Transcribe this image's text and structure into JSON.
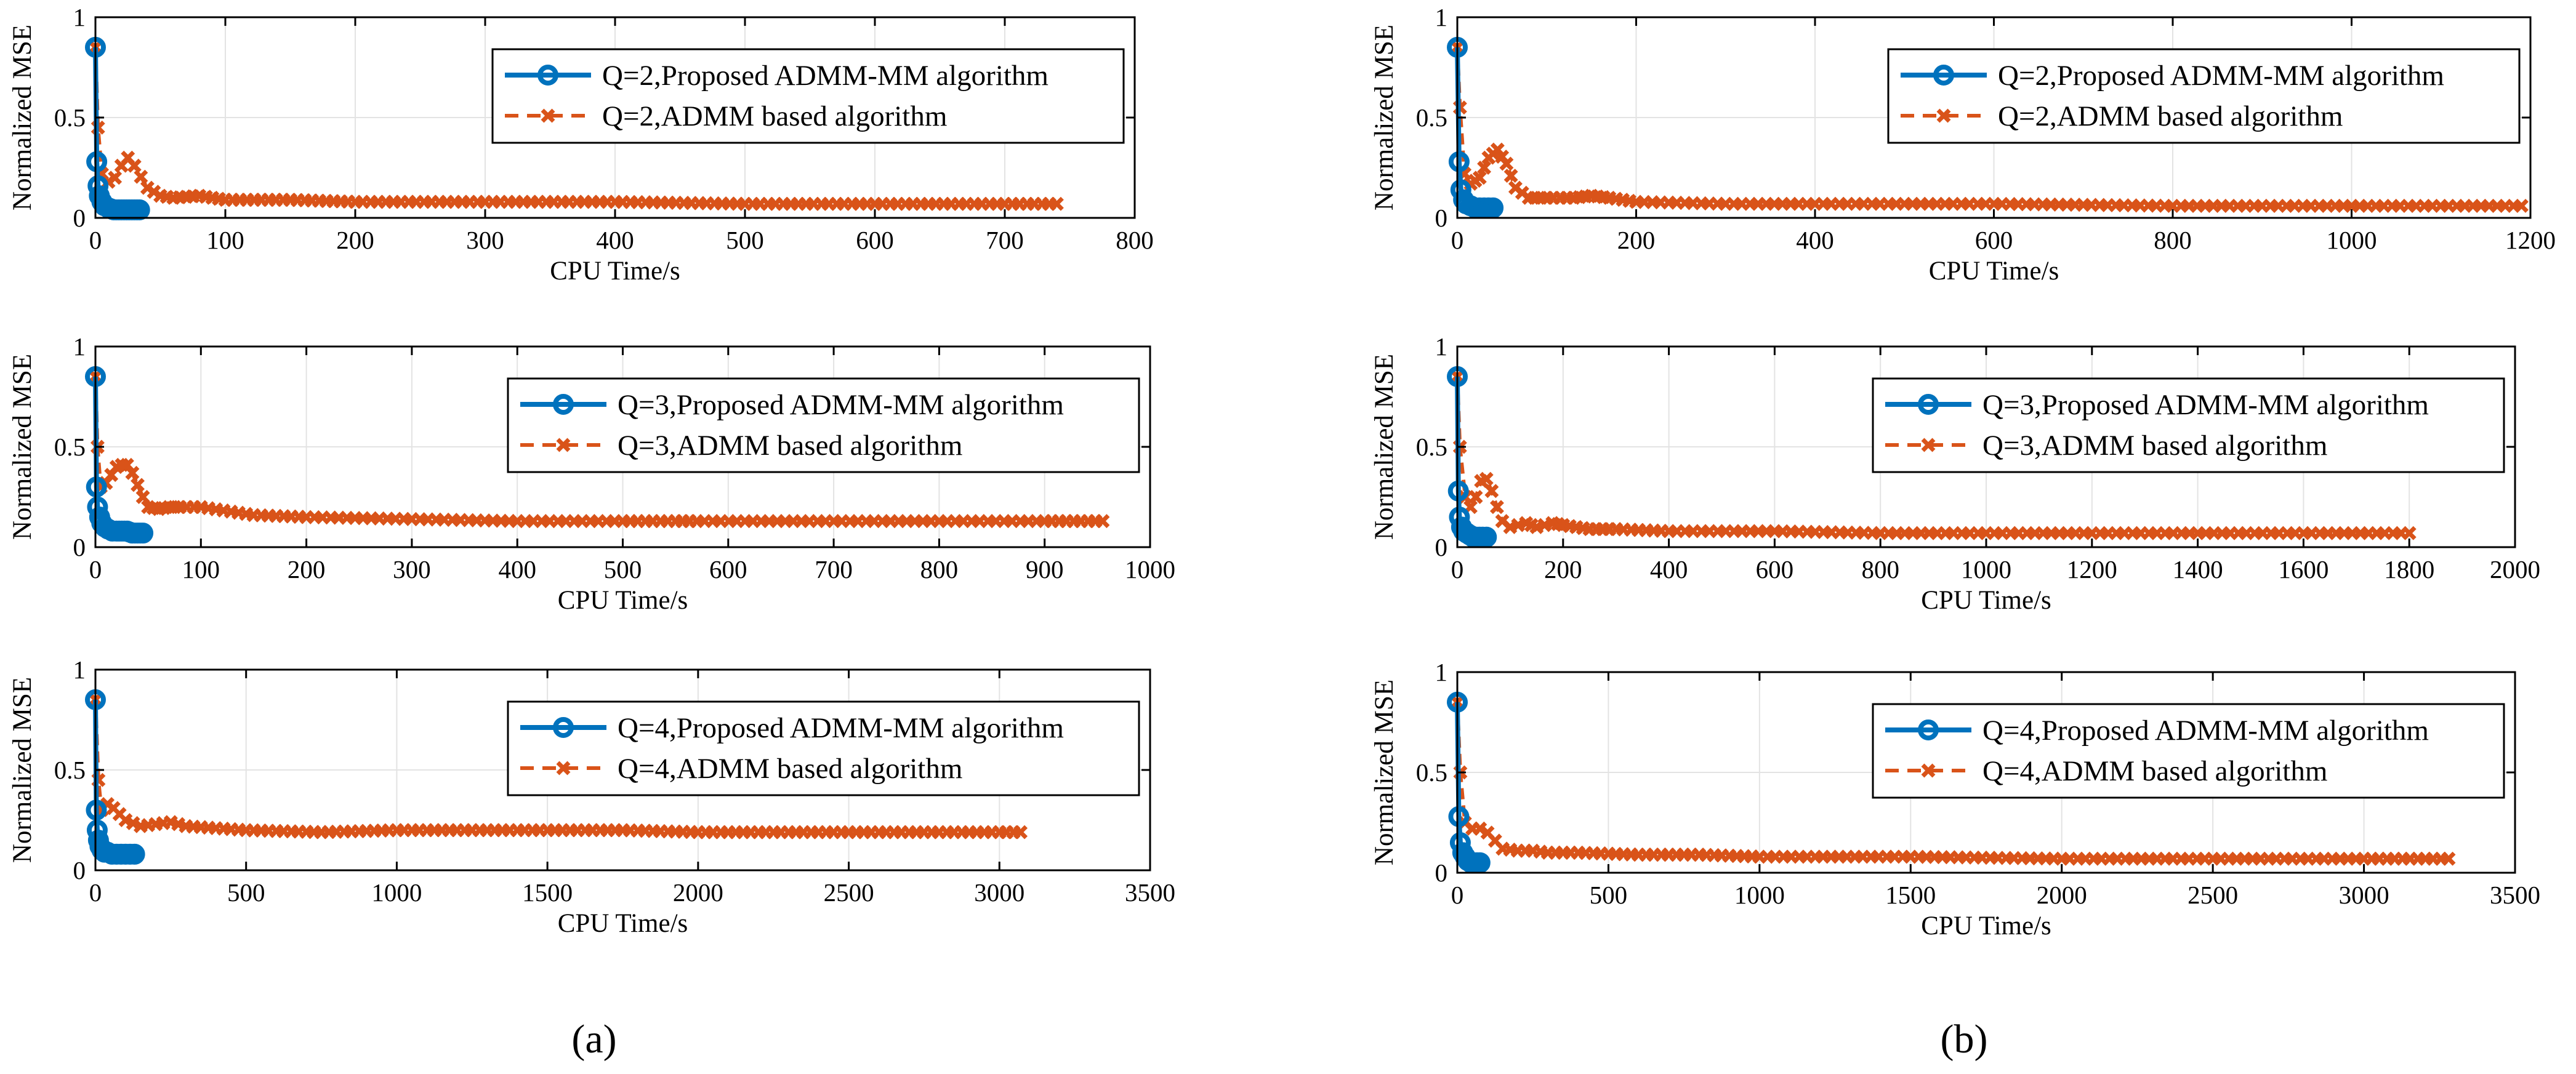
{
  "panel_labels": [
    "(a)",
    "(b)"
  ],
  "colors": {
    "proposed": "#0072BD",
    "admm": "#D95319",
    "grid": "#e3e3e3",
    "axis": "#000000"
  },
  "chart_data": [
    {
      "type": "line",
      "panel": "a",
      "xlabel": "CPU Time/s",
      "ylabel": "Normalized MSE",
      "xlim": [
        0,
        800
      ],
      "ylim": [
        0,
        1
      ],
      "xticks": [
        0,
        100,
        200,
        300,
        400,
        500,
        600,
        700,
        800
      ],
      "yticks": [
        0,
        0.5,
        1
      ],
      "grid": true,
      "legend": "top-right",
      "series": [
        {
          "name": "Q=2,Proposed ADMM-MM algorithm",
          "x": [
            0,
            1,
            2,
            3,
            5,
            7,
            10,
            14,
            18,
            22,
            26,
            30,
            34
          ],
          "y": [
            0.85,
            0.28,
            0.16,
            0.11,
            0.08,
            0.06,
            0.05,
            0.04,
            0.04,
            0.04,
            0.04,
            0.04,
            0.04
          ]
        },
        {
          "name": "Q=2,ADMM based algorithm",
          "x": [
            0,
            2,
            5,
            10,
            15,
            20,
            25,
            30,
            40,
            50,
            60,
            80,
            100,
            150,
            200,
            300,
            400,
            500,
            600,
            700,
            740
          ],
          "y": [
            0.85,
            0.45,
            0.22,
            0.18,
            0.2,
            0.26,
            0.3,
            0.26,
            0.15,
            0.11,
            0.1,
            0.11,
            0.09,
            0.09,
            0.08,
            0.08,
            0.08,
            0.07,
            0.07,
            0.07,
            0.07
          ]
        }
      ]
    },
    {
      "type": "line",
      "panel": "b",
      "xlabel": "CPU Time/s",
      "ylabel": "Normalized MSE",
      "xlim": [
        0,
        1200
      ],
      "ylim": [
        0,
        1
      ],
      "xticks": [
        0,
        200,
        400,
        600,
        800,
        1000,
        1200
      ],
      "yticks": [
        0,
        0.5,
        1
      ],
      "grid": true,
      "legend": "top-right",
      "series": [
        {
          "name": "Q=2,Proposed ADMM-MM algorithm",
          "x": [
            0,
            2,
            4,
            7,
            10,
            15,
            20,
            25,
            30,
            35,
            40
          ],
          "y": [
            0.85,
            0.28,
            0.14,
            0.09,
            0.07,
            0.06,
            0.05,
            0.05,
            0.05,
            0.05,
            0.05
          ]
        },
        {
          "name": "Q=2,ADMM based algorithm",
          "x": [
            0,
            3,
            8,
            15,
            25,
            35,
            45,
            55,
            65,
            80,
            100,
            130,
            150,
            170,
            200,
            300,
            400,
            600,
            800,
            1000,
            1190
          ],
          "y": [
            0.85,
            0.55,
            0.22,
            0.17,
            0.2,
            0.3,
            0.34,
            0.27,
            0.15,
            0.1,
            0.1,
            0.1,
            0.11,
            0.1,
            0.08,
            0.07,
            0.07,
            0.07,
            0.06,
            0.06,
            0.06
          ]
        }
      ]
    },
    {
      "type": "line",
      "panel": "a",
      "xlabel": "CPU Time/s",
      "ylabel": "Normalized MSE",
      "xlim": [
        0,
        1000
      ],
      "ylim": [
        0,
        1
      ],
      "xticks": [
        0,
        100,
        200,
        300,
        400,
        500,
        600,
        700,
        800,
        900,
        1000
      ],
      "yticks": [
        0,
        0.5,
        1
      ],
      "grid": true,
      "legend": "top-right",
      "series": [
        {
          "name": "Q=3,Proposed ADMM-MM algorithm",
          "x": [
            0,
            1,
            2,
            4,
            6,
            9,
            12,
            16,
            20,
            25,
            30,
            35,
            40,
            45
          ],
          "y": [
            0.85,
            0.3,
            0.2,
            0.15,
            0.12,
            0.1,
            0.09,
            0.08,
            0.08,
            0.08,
            0.08,
            0.07,
            0.07,
            0.07
          ]
        },
        {
          "name": "Q=3,ADMM based algorithm",
          "x": [
            0,
            2,
            5,
            10,
            15,
            20,
            25,
            30,
            35,
            40,
            45,
            50,
            60,
            70,
            80,
            100,
            150,
            200,
            300,
            400,
            500,
            550,
            570,
            700,
            800,
            900,
            955
          ],
          "y": [
            0.85,
            0.5,
            0.3,
            0.32,
            0.36,
            0.4,
            0.41,
            0.41,
            0.37,
            0.31,
            0.25,
            0.2,
            0.19,
            0.2,
            0.2,
            0.2,
            0.16,
            0.15,
            0.14,
            0.13,
            0.13,
            0.13,
            0.13,
            0.13,
            0.13,
            0.13,
            0.13
          ]
        }
      ]
    },
    {
      "type": "line",
      "panel": "b",
      "xlabel": "CPU Time/s",
      "ylabel": "Normalized MSE",
      "xlim": [
        0,
        2000
      ],
      "ylim": [
        0,
        1
      ],
      "xticks": [
        0,
        200,
        400,
        600,
        800,
        1000,
        1200,
        1400,
        1600,
        1800,
        2000
      ],
      "yticks": [
        0,
        0.5,
        1
      ],
      "grid": true,
      "legend": "top-right",
      "series": [
        {
          "name": "Q=3,Proposed ADMM-MM algorithm",
          "x": [
            0,
            2,
            4,
            8,
            12,
            18,
            24,
            30,
            36,
            42,
            48,
            55
          ],
          "y": [
            0.85,
            0.28,
            0.15,
            0.1,
            0.08,
            0.07,
            0.06,
            0.05,
            0.05,
            0.05,
            0.05,
            0.05
          ]
        },
        {
          "name": "Q=3,ADMM based algorithm",
          "x": [
            0,
            5,
            15,
            25,
            35,
            45,
            55,
            65,
            75,
            85,
            100,
            130,
            150,
            180,
            200,
            250,
            300,
            400,
            600,
            800,
            1000,
            1200,
            1400,
            1600,
            1800
          ],
          "y": [
            0.85,
            0.5,
            0.25,
            0.2,
            0.25,
            0.33,
            0.34,
            0.28,
            0.2,
            0.13,
            0.1,
            0.12,
            0.1,
            0.12,
            0.11,
            0.09,
            0.09,
            0.08,
            0.08,
            0.07,
            0.07,
            0.07,
            0.07,
            0.07,
            0.07
          ]
        }
      ]
    },
    {
      "type": "line",
      "panel": "a",
      "xlabel": "CPU Time/s",
      "ylabel": "Normalized MSE",
      "xlim": [
        0,
        3500
      ],
      "ylim": [
        0,
        1
      ],
      "xticks": [
        0,
        500,
        1000,
        1500,
        2000,
        2500,
        3000,
        3500
      ],
      "yticks": [
        0,
        0.5,
        1
      ],
      "grid": true,
      "legend": "top-right",
      "series": [
        {
          "name": "Q=4,Proposed ADMM-MM algorithm",
          "x": [
            0,
            3,
            6,
            10,
            15,
            22,
            30,
            40,
            55,
            70,
            85,
            100,
            115,
            130
          ],
          "y": [
            0.85,
            0.3,
            0.2,
            0.15,
            0.12,
            0.1,
            0.09,
            0.09,
            0.08,
            0.08,
            0.08,
            0.08,
            0.08,
            0.08
          ]
        },
        {
          "name": "Q=4,ADMM based algorithm",
          "x": [
            0,
            10,
            20,
            40,
            60,
            100,
            150,
            200,
            250,
            300,
            500,
            750,
            1000,
            1250,
            1500,
            1750,
            2000,
            2250,
            2500,
            2750,
            3000,
            3070
          ],
          "y": [
            0.85,
            0.45,
            0.3,
            0.33,
            0.31,
            0.25,
            0.22,
            0.23,
            0.24,
            0.22,
            0.2,
            0.19,
            0.2,
            0.2,
            0.2,
            0.2,
            0.19,
            0.19,
            0.19,
            0.19,
            0.19,
            0.19
          ]
        }
      ]
    },
    {
      "type": "line",
      "panel": "b",
      "xlabel": "CPU Time/s",
      "ylabel": "Normalized MSE",
      "xlim": [
        0,
        3500
      ],
      "ylim": [
        0,
        1
      ],
      "xticks": [
        0,
        500,
        1000,
        1500,
        2000,
        2500,
        3000,
        3500
      ],
      "yticks": [
        0,
        0.5,
        1
      ],
      "grid": true,
      "legend": "top-right",
      "series": [
        {
          "name": "Q=4,Proposed ADMM-MM algorithm",
          "x": [
            0,
            5,
            10,
            18,
            26,
            35,
            45,
            55,
            65,
            75
          ],
          "y": [
            0.85,
            0.28,
            0.15,
            0.1,
            0.08,
            0.06,
            0.05,
            0.05,
            0.05,
            0.05
          ]
        },
        {
          "name": "Q=4,ADMM based algorithm",
          "x": [
            0,
            10,
            25,
            50,
            75,
            100,
            125,
            150,
            200,
            250,
            300,
            400,
            600,
            800,
            1000,
            1500,
            2000,
            2500,
            3000,
            3280
          ],
          "y": [
            0.85,
            0.5,
            0.25,
            0.22,
            0.22,
            0.2,
            0.16,
            0.12,
            0.11,
            0.11,
            0.1,
            0.1,
            0.09,
            0.09,
            0.08,
            0.08,
            0.07,
            0.07,
            0.07,
            0.07
          ]
        }
      ]
    }
  ]
}
